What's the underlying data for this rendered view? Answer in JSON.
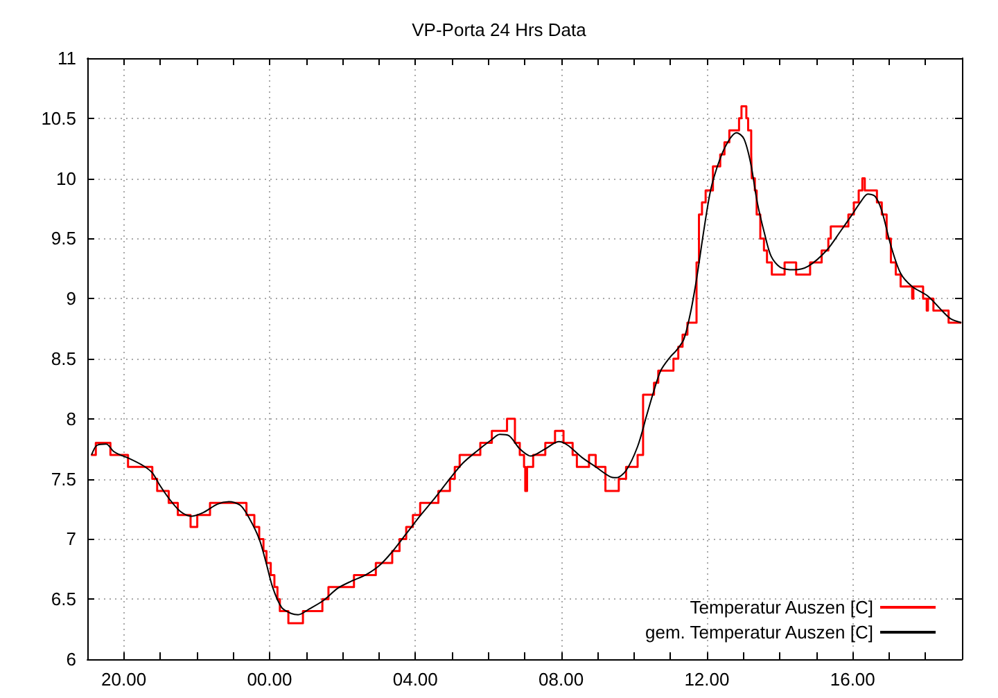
{
  "chart_data": {
    "type": "line",
    "title": "VP-Porta 24 Hrs Data",
    "xlim": [
      "--01-01T19:00",
      "--01-02T19:00"
    ],
    "xticks": [
      {
        "value": "--01-01T20:00",
        "label": "20.00"
      },
      {
        "value": "--01-01T21:00",
        "label": null
      },
      {
        "value": "--01-01T22:00",
        "label": null
      },
      {
        "value": "--01-01T23:00",
        "label": null
      },
      {
        "value": "--01-02T00:00",
        "label": "00.00"
      },
      {
        "value": "--01-02T01:00",
        "label": null
      },
      {
        "value": "--01-02T02:00",
        "label": null
      },
      {
        "value": "--01-02T03:00",
        "label": null
      },
      {
        "value": "--01-02T04:00",
        "label": "04.00"
      },
      {
        "value": "--01-02T05:00",
        "label": null
      },
      {
        "value": "--01-02T06:00",
        "label": null
      },
      {
        "value": "--01-02T07:00",
        "label": null
      },
      {
        "value": "--01-02T08:00",
        "label": "08.00"
      },
      {
        "value": "--01-02T09:00",
        "label": null
      },
      {
        "value": "--01-02T10:00",
        "label": null
      },
      {
        "value": "--01-02T11:00",
        "label": null
      },
      {
        "value": "--01-02T12:00",
        "label": "12.00"
      },
      {
        "value": "--01-02T13:00",
        "label": null
      },
      {
        "value": "--01-02T14:00",
        "label": null
      },
      {
        "value": "--01-02T15:00",
        "label": null
      },
      {
        "value": "--01-02T16:00",
        "label": "16.00"
      },
      {
        "value": "--01-02T17:00",
        "label": null
      },
      {
        "value": "--01-02T18:00",
        "label": null
      }
    ],
    "ylim": [
      6,
      11
    ],
    "yticks": [
      6,
      6.5,
      7,
      7.5,
      8,
      8.5,
      9,
      9.5,
      10,
      10.5,
      11
    ],
    "grid": true,
    "legend": "bottom right",
    "series": [
      {
        "name": "Temperatur Auszen [C]",
        "type": "step",
        "color": "#ff0000",
        "x": [
          "--01-01T19:06",
          "--01-01T19:14",
          "--01-01T19:38",
          "--01-01T20:07",
          "--01-01T20:47",
          "--01-01T20:55",
          "--01-01T21:14",
          "--01-01T21:29",
          "--01-01T21:50",
          "--01-01T22:01",
          "--01-01T22:22",
          "--01-01T23:22",
          "--01-01T23:35",
          "--01-01T23:43",
          "--01-01T23:50",
          "--01-01T23:55",
          "--01-02T00:02",
          "--01-02T00:08",
          "--01-02T00:13",
          "--01-02T00:17",
          "--01-02T00:31",
          "--01-02T00:55",
          "--01-02T01:27",
          "--01-02T01:37",
          "--01-02T02:19",
          "--01-02T02:55",
          "--01-02T03:22",
          "--01-02T03:34",
          "--01-02T03:45",
          "--01-02T03:56",
          "--01-02T04:08",
          "--01-02T04:38",
          "--01-02T04:57",
          "--01-02T05:05",
          "--01-02T05:13",
          "--01-02T05:47",
          "--01-02T06:06",
          "--01-02T06:31",
          "--01-02T06:44",
          "--01-02T06:52",
          "--01-02T06:59",
          "--01-02T07:01",
          "--01-02T07:04",
          "--01-02T07:14",
          "--01-02T07:34",
          "--01-02T07:50",
          "--01-02T08:04",
          "--01-02T08:19",
          "--01-02T08:26",
          "--01-02T08:46",
          "--01-02T08:57",
          "--01-02T09:13",
          "--01-02T09:35",
          "--01-02T09:47",
          "--01-02T10:06",
          "--01-02T10:15",
          "--01-02T10:33",
          "--01-02T10:40",
          "--01-02T11:05",
          "--01-02T11:13",
          "--01-02T11:20",
          "--01-02T11:28",
          "--01-02T11:43",
          "--01-02T11:47",
          "--01-02T11:52",
          "--01-02T11:58",
          "--01-02T12:10",
          "--01-02T12:22",
          "--01-02T12:29",
          "--01-02T12:37",
          "--01-02T12:53",
          "--01-02T12:57",
          "--01-02T13:05",
          "--01-02T13:08",
          "--01-02T13:13",
          "--01-02T13:14",
          "--01-02T13:19",
          "--01-02T13:22",
          "--01-02T13:28",
          "--01-02T13:34",
          "--01-02T13:39",
          "--01-02T13:47",
          "--01-02T14:08",
          "--01-02T14:27",
          "--01-02T14:50",
          "--01-02T15:09",
          "--01-02T15:20",
          "--01-02T15:24",
          "--01-02T15:53",
          "--01-02T16:02",
          "--01-02T16:10",
          "--01-02T16:16",
          "--01-02T16:20",
          "--01-02T16:40",
          "--01-02T16:48",
          "--01-02T16:56",
          "--01-02T17:03",
          "--01-02T17:11",
          "--01-02T17:19",
          "--01-02T17:38",
          "--01-02T17:40",
          "--01-02T17:56",
          "--01-02T18:02",
          "--01-02T18:04",
          "--01-02T18:13",
          "--01-02T18:38",
          "--01-02T18:59"
        ],
        "values": [
          7.7,
          7.8,
          7.7,
          7.6,
          7.5,
          7.4,
          7.3,
          7.2,
          7.1,
          7.2,
          7.3,
          7.2,
          7.1,
          7.0,
          6.9,
          6.8,
          6.7,
          6.6,
          6.5,
          6.4,
          6.3,
          6.4,
          6.5,
          6.6,
          6.7,
          6.8,
          6.9,
          7.0,
          7.1,
          7.2,
          7.3,
          7.4,
          7.5,
          7.6,
          7.7,
          7.8,
          7.9,
          8.0,
          7.8,
          7.7,
          7.6,
          7.4,
          7.6,
          7.7,
          7.8,
          7.9,
          7.8,
          7.7,
          7.6,
          7.7,
          7.6,
          7.4,
          7.5,
          7.6,
          7.7,
          8.2,
          8.3,
          8.4,
          8.5,
          8.6,
          8.7,
          8.8,
          9.3,
          9.7,
          9.8,
          9.9,
          10.1,
          10.2,
          10.3,
          10.4,
          10.5,
          10.6,
          10.5,
          10.4,
          10.2,
          10.0,
          9.9,
          9.7,
          9.5,
          9.4,
          9.3,
          9.2,
          9.3,
          9.2,
          9.3,
          9.4,
          9.5,
          9.6,
          9.7,
          9.8,
          9.9,
          10.0,
          9.9,
          9.8,
          9.7,
          9.5,
          9.3,
          9.2,
          9.1,
          9.0,
          9.1,
          9.0,
          8.9,
          9.0,
          8.9,
          8.8,
          8.8
        ]
      },
      {
        "name": "gem. Temperatur Auszen [C]",
        "color": "#000000",
        "x": [
          "--01-01T19:07",
          "--01-01T19:16",
          "--01-01T19:31",
          "--01-01T19:43",
          "--01-01T19:54",
          "--01-01T20:09",
          "--01-01T20:32",
          "--01-01T20:47",
          "--01-01T20:59",
          "--01-01T21:14",
          "--01-01T21:33",
          "--01-01T21:52",
          "--01-01T22:11",
          "--01-01T22:34",
          "--01-01T22:53",
          "--01-01T23:12",
          "--01-01T23:27",
          "--01-01T23:43",
          "--01-01T23:54",
          "--01-02T00:05",
          "--01-02T00:20",
          "--01-02T00:36",
          "--01-02T00:47",
          "--01-02T01:06",
          "--01-02T01:29",
          "--01-02T01:52",
          "--01-02T02:15",
          "--01-02T02:38",
          "--01-02T03:01",
          "--01-02T03:23",
          "--01-02T03:46",
          "--01-02T04:09",
          "--01-02T04:32",
          "--01-02T04:55",
          "--01-02T05:18",
          "--01-02T05:41",
          "--01-02T06:04",
          "--01-02T06:19",
          "--01-02T06:34",
          "--01-02T06:52",
          "--01-02T07:10",
          "--01-02T07:34",
          "--01-02T07:56",
          "--01-02T08:11",
          "--01-02T08:34",
          "--01-02T08:57",
          "--01-02T09:20",
          "--01-02T09:31",
          "--01-02T09:47",
          "--01-02T10:06",
          "--01-02T10:21",
          "--01-02T10:32",
          "--01-02T10:44",
          "--01-02T10:59",
          "--01-02T11:10",
          "--01-02T11:22",
          "--01-02T11:33",
          "--01-02T11:41",
          "--01-02T11:46",
          "--01-02T11:56",
          "--01-02T12:07",
          "--01-02T12:23",
          "--01-02T12:38",
          "--01-02T12:49",
          "--01-02T13:01",
          "--01-02T13:12",
          "--01-02T13:23",
          "--01-02T13:35",
          "--01-02T13:46",
          "--01-02T14:01",
          "--01-02T14:24",
          "--01-02T14:47",
          "--01-02T15:17",
          "--01-02T15:40",
          "--01-02T15:58",
          "--01-02T16:14",
          "--01-02T16:25",
          "--01-02T16:37",
          "--01-02T16:48",
          "--01-02T17:03",
          "--01-02T17:19",
          "--01-02T17:38",
          "--01-02T18:04",
          "--01-02T18:27",
          "--01-02T18:42",
          "--01-02T18:59"
        ],
        "values": [
          7.7,
          7.78,
          7.79,
          7.73,
          7.7,
          7.67,
          7.61,
          7.55,
          7.45,
          7.34,
          7.23,
          7.19,
          7.22,
          7.29,
          7.31,
          7.28,
          7.17,
          7.0,
          6.81,
          6.6,
          6.43,
          6.38,
          6.37,
          6.42,
          6.49,
          6.59,
          6.65,
          6.7,
          6.78,
          6.9,
          7.05,
          7.2,
          7.34,
          7.49,
          7.63,
          7.73,
          7.82,
          7.87,
          7.86,
          7.75,
          7.69,
          7.75,
          7.81,
          7.78,
          7.68,
          7.6,
          7.52,
          7.51,
          7.57,
          7.77,
          8.03,
          8.22,
          8.4,
          8.51,
          8.57,
          8.66,
          8.88,
          9.1,
          9.26,
          9.6,
          9.92,
          10.18,
          10.33,
          10.38,
          10.33,
          10.13,
          9.8,
          9.54,
          9.35,
          9.26,
          9.24,
          9.27,
          9.4,
          9.56,
          9.69,
          9.81,
          9.87,
          9.85,
          9.73,
          9.44,
          9.21,
          9.1,
          9.02,
          8.9,
          8.83,
          8.8
        ]
      }
    ]
  }
}
